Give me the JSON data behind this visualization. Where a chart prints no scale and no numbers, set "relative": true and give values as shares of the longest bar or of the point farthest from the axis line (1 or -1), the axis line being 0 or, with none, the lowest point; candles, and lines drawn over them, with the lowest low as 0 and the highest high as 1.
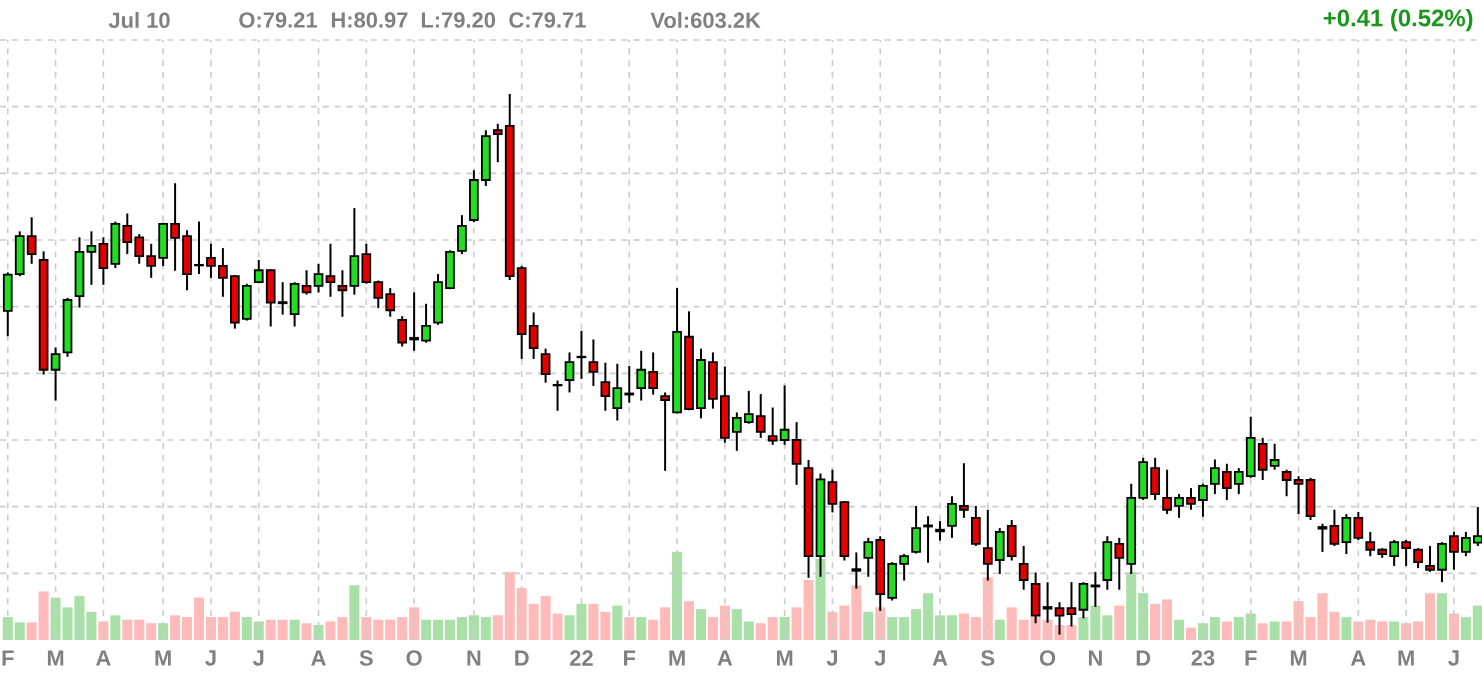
{
  "chart_data": [
    {
      "type": "candlestick",
      "annotations": [
        "Jul 10",
        "O:79.21",
        "H:80.97",
        "L:79.20",
        "C:79.71",
        "Vol:603.2K",
        "+0.41 (0.52%)"
      ],
      "relative": true,
      "grid": true,
      "categories": [
        "F",
        null,
        null,
        null,
        "M",
        null,
        null,
        null,
        "A",
        null,
        null,
        null,
        null,
        "M",
        null,
        null,
        null,
        "J",
        null,
        null,
        null,
        "J",
        null,
        null,
        null,
        null,
        "A",
        null,
        null,
        null,
        "S",
        null,
        null,
        null,
        "O",
        null,
        null,
        null,
        null,
        "N",
        null,
        null,
        null,
        "D",
        null,
        null,
        null,
        null,
        "22",
        null,
        null,
        null,
        "F",
        null,
        null,
        null,
        "M",
        null,
        null,
        null,
        "A",
        null,
        null,
        null,
        null,
        "M",
        null,
        null,
        null,
        "J",
        null,
        null,
        null,
        "J",
        null,
        null,
        null,
        null,
        "A",
        null,
        null,
        null,
        "S",
        null,
        null,
        null,
        null,
        "O",
        null,
        null,
        null,
        "N",
        null,
        null,
        null,
        "D",
        null,
        null,
        null,
        null,
        "23",
        null,
        null,
        null,
        "F",
        null,
        null,
        null,
        "M",
        null,
        null,
        null,
        null,
        "A",
        null,
        null,
        null,
        "M",
        null,
        null,
        null,
        "J",
        null,
        null
      ],
      "ohlc": [
        [
          0.599,
          0.67,
          0.552,
          0.666
        ],
        [
          0.667,
          0.746,
          0.663,
          0.737
        ],
        [
          0.737,
          0.772,
          0.686,
          0.704
        ],
        [
          0.693,
          0.709,
          0.481,
          0.49
        ],
        [
          0.49,
          0.531,
          0.433,
          0.519
        ],
        [
          0.522,
          0.623,
          0.514,
          0.619
        ],
        [
          0.626,
          0.735,
          0.605,
          0.708
        ],
        [
          0.708,
          0.746,
          0.647,
          0.719
        ],
        [
          0.723,
          0.735,
          0.647,
          0.678
        ],
        [
          0.686,
          0.764,
          0.678,
          0.76
        ],
        [
          0.756,
          0.779,
          0.704,
          0.726
        ],
        [
          0.735,
          0.741,
          0.686,
          0.7
        ],
        [
          0.7,
          0.723,
          0.66,
          0.682
        ],
        [
          0.697,
          0.762,
          0.682,
          0.76
        ],
        [
          0.76,
          0.835,
          0.673,
          0.734
        ],
        [
          0.737,
          0.748,
          0.637,
          0.667
        ],
        [
          0.684,
          0.764,
          0.667,
          0.683
        ],
        [
          0.697,
          0.723,
          0.66,
          0.682
        ],
        [
          0.682,
          0.715,
          0.625,
          0.66
        ],
        [
          0.663,
          0.665,
          0.566,
          0.577
        ],
        [
          0.584,
          0.649,
          0.581,
          0.645
        ],
        [
          0.652,
          0.693,
          0.65,
          0.674
        ],
        [
          0.674,
          0.676,
          0.57,
          0.614
        ],
        [
          0.615,
          0.652,
          0.592,
          0.613
        ],
        [
          0.593,
          0.652,
          0.57,
          0.649
        ],
        [
          0.645,
          0.674,
          0.629,
          0.633
        ],
        [
          0.645,
          0.686,
          0.633,
          0.667
        ],
        [
          0.663,
          0.723,
          0.625,
          0.652
        ],
        [
          0.645,
          0.674,
          0.588,
          0.637
        ],
        [
          0.645,
          0.789,
          0.629,
          0.7
        ],
        [
          0.704,
          0.723,
          0.649,
          0.652
        ],
        [
          0.652,
          0.655,
          0.604,
          0.623
        ],
        [
          0.63,
          0.641,
          0.588,
          0.6
        ],
        [
          0.582,
          0.589,
          0.533,
          0.54
        ],
        [
          0.549,
          0.633,
          0.525,
          0.546
        ],
        [
          0.544,
          0.612,
          0.54,
          0.571
        ],
        [
          0.577,
          0.667,
          0.573,
          0.652
        ],
        [
          0.641,
          0.711,
          0.639,
          0.708
        ],
        [
          0.71,
          0.776,
          0.704,
          0.756
        ],
        [
          0.767,
          0.859,
          0.763,
          0.841
        ],
        [
          0.841,
          0.933,
          0.83,
          0.922
        ],
        [
          0.933,
          0.945,
          0.874,
          0.926
        ],
        [
          0.941,
          1.0,
          0.656,
          0.663
        ],
        [
          0.678,
          0.682,
          0.51,
          0.556
        ],
        [
          0.571,
          0.596,
          0.51,
          0.53
        ],
        [
          0.519,
          0.529,
          0.466,
          0.482
        ],
        [
          0.462,
          0.47,
          0.414,
          0.461
        ],
        [
          0.471,
          0.522,
          0.448,
          0.504
        ],
        [
          0.513,
          0.562,
          0.473,
          0.514
        ],
        [
          0.504,
          0.546,
          0.46,
          0.486
        ],
        [
          0.467,
          0.503,
          0.414,
          0.441
        ],
        [
          0.419,
          0.501,
          0.396,
          0.456
        ],
        [
          0.446,
          0.497,
          0.429,
          0.444
        ],
        [
          0.456,
          0.525,
          0.433,
          0.49
        ],
        [
          0.486,
          0.522,
          0.444,
          0.456
        ],
        [
          0.441,
          0.448,
          0.303,
          0.434
        ],
        [
          0.411,
          0.641,
          0.409,
          0.56
        ],
        [
          0.551,
          0.598,
          0.415,
          0.417
        ],
        [
          0.419,
          0.529,
          0.4,
          0.508
        ],
        [
          0.504,
          0.522,
          0.418,
          0.436
        ],
        [
          0.441,
          0.496,
          0.355,
          0.364
        ],
        [
          0.375,
          0.411,
          0.34,
          0.401
        ],
        [
          0.393,
          0.451,
          0.39,
          0.408
        ],
        [
          0.404,
          0.445,
          0.364,
          0.375
        ],
        [
          0.367,
          0.42,
          0.351,
          0.359
        ],
        [
          0.36,
          0.461,
          0.351,
          0.379
        ],
        [
          0.36,
          0.393,
          0.277,
          0.316
        ],
        [
          0.308,
          0.323,
          0.105,
          0.145
        ],
        [
          0.145,
          0.298,
          0.107,
          0.287
        ],
        [
          0.282,
          0.305,
          0.226,
          0.242
        ],
        [
          0.245,
          0.247,
          0.137,
          0.145
        ],
        [
          0.121,
          0.152,
          0.085,
          0.118
        ],
        [
          0.142,
          0.179,
          0.107,
          0.171
        ],
        [
          0.175,
          0.182,
          0.044,
          0.075
        ],
        [
          0.068,
          0.134,
          0.063,
          0.131
        ],
        [
          0.131,
          0.149,
          0.1,
          0.145
        ],
        [
          0.153,
          0.238,
          0.15,
          0.197
        ],
        [
          0.2,
          0.219,
          0.133,
          0.202
        ],
        [
          0.191,
          0.21,
          0.174,
          0.194
        ],
        [
          0.201,
          0.256,
          0.179,
          0.242
        ],
        [
          0.238,
          0.317,
          0.216,
          0.231
        ],
        [
          0.216,
          0.238,
          0.164,
          0.168
        ],
        [
          0.16,
          0.231,
          0.1,
          0.131
        ],
        [
          0.138,
          0.197,
          0.112,
          0.19
        ],
        [
          0.201,
          0.212,
          0.137,
          0.145
        ],
        [
          0.131,
          0.164,
          0.083,
          0.101
        ],
        [
          0.094,
          0.115,
          0.021,
          0.035
        ],
        [
          0.051,
          0.097,
          0.022,
          0.048
        ],
        [
          0.049,
          0.06,
          0.0,
          0.035
        ],
        [
          0.049,
          0.097,
          0.015,
          0.038
        ],
        [
          0.046,
          0.097,
          0.03,
          0.094
        ],
        [
          0.089,
          0.116,
          0.051,
          0.091
        ],
        [
          0.101,
          0.182,
          0.083,
          0.171
        ],
        [
          0.168,
          0.179,
          0.083,
          0.142
        ],
        [
          0.131,
          0.279,
          0.112,
          0.253
        ],
        [
          0.253,
          0.327,
          0.249,
          0.319
        ],
        [
          0.308,
          0.327,
          0.249,
          0.26
        ],
        [
          0.253,
          0.305,
          0.223,
          0.231
        ],
        [
          0.238,
          0.26,
          0.216,
          0.253
        ],
        [
          0.253,
          0.271,
          0.231,
          0.242
        ],
        [
          0.249,
          0.279,
          0.218,
          0.275
        ],
        [
          0.279,
          0.324,
          0.26,
          0.308
        ],
        [
          0.301,
          0.316,
          0.249,
          0.271
        ],
        [
          0.279,
          0.308,
          0.26,
          0.301
        ],
        [
          0.293,
          0.403,
          0.29,
          0.364
        ],
        [
          0.353,
          0.364,
          0.286,
          0.305
        ],
        [
          0.312,
          0.353,
          0.305,
          0.323
        ],
        [
          0.301,
          0.305,
          0.256,
          0.286
        ],
        [
          0.286,
          0.293,
          0.223,
          0.279
        ],
        [
          0.286,
          0.29,
          0.212,
          0.219
        ],
        [
          0.199,
          0.205,
          0.153,
          0.196
        ],
        [
          0.201,
          0.231,
          0.164,
          0.168
        ],
        [
          0.171,
          0.223,
          0.149,
          0.216
        ],
        [
          0.216,
          0.227,
          0.175,
          0.179
        ],
        [
          0.171,
          0.19,
          0.145,
          0.157
        ],
        [
          0.157,
          0.16,
          0.142,
          0.149
        ],
        [
          0.145,
          0.175,
          0.127,
          0.171
        ],
        [
          0.171,
          0.175,
          0.127,
          0.16
        ],
        [
          0.157,
          0.16,
          0.123,
          0.134
        ],
        [
          0.127,
          0.164,
          0.116,
          0.12
        ],
        [
          0.12,
          0.171,
          0.097,
          0.168
        ],
        [
          0.182,
          0.19,
          0.12,
          0.153
        ],
        [
          0.153,
          0.19,
          0.145,
          0.179
        ],
        [
          0.17,
          0.236,
          0.164,
          0.182
        ]
      ],
      "colors": [
        "#22dd22",
        "#22dd22",
        "#e60000",
        "#e60000",
        "#22dd22",
        "#22dd22",
        "#22dd22",
        "#22dd22",
        "#e60000",
        "#22dd22",
        "#e60000",
        "#e60000",
        "#e60000",
        "#22dd22",
        "#e60000",
        "#e60000",
        "#e60000",
        "#e60000",
        "#e60000",
        "#e60000",
        "#22dd22",
        "#22dd22",
        "#e60000",
        "#e60000",
        "#22dd22",
        "#e60000",
        "#22dd22",
        "#e60000",
        "#e60000",
        "#22dd22",
        "#e60000",
        "#e60000",
        "#e60000",
        "#e60000",
        "#e60000",
        "#22dd22",
        "#22dd22",
        "#22dd22",
        "#22dd22",
        "#22dd22",
        "#22dd22",
        "#e60000",
        "#e60000",
        "#e60000",
        "#e60000",
        "#e60000",
        "#e60000",
        "#22dd22",
        "#22dd22",
        "#e60000",
        "#e60000",
        "#22dd22",
        "#e60000",
        "#22dd22",
        "#e60000",
        "#e60000",
        "#22dd22",
        "#e60000",
        "#22dd22",
        "#e60000",
        "#e60000",
        "#22dd22",
        "#22dd22",
        "#e60000",
        "#e60000",
        "#22dd22",
        "#e60000",
        "#e60000",
        "#22dd22",
        "#e60000",
        "#e60000",
        "#e60000",
        "#22dd22",
        "#e60000",
        "#22dd22",
        "#22dd22",
        "#22dd22",
        "#22dd22",
        "#22dd22",
        "#22dd22",
        "#e60000",
        "#e60000",
        "#e60000",
        "#22dd22",
        "#e60000",
        "#e60000",
        "#e60000",
        "#e60000",
        "#e60000",
        "#e60000",
        "#22dd22",
        "#22dd22",
        "#22dd22",
        "#e60000",
        "#22dd22",
        "#22dd22",
        "#e60000",
        "#e60000",
        "#22dd22",
        "#e60000",
        "#22dd22",
        "#22dd22",
        "#e60000",
        "#22dd22",
        "#22dd22",
        "#e60000",
        "#22dd22",
        "#e60000",
        "#e60000",
        "#e60000",
        "#e60000",
        "#e60000",
        "#22dd22",
        "#e60000",
        "#e60000",
        "#e60000",
        "#22dd22",
        "#e60000",
        "#e60000",
        "#e60000",
        "#22dd22",
        "#e60000",
        "#22dd22",
        "#22dd22"
      ]
    },
    {
      "type": "bar",
      "relative": true,
      "categories": [
        null,
        null,
        null,
        null,
        null,
        null,
        null,
        null,
        null,
        null,
        null,
        null,
        null,
        null,
        null,
        null,
        null,
        null,
        null,
        null,
        null,
        null,
        null,
        null,
        null,
        null,
        null,
        null,
        null,
        null,
        null,
        null,
        null,
        null,
        null,
        null,
        null,
        null,
        null,
        null,
        null,
        null,
        null,
        null,
        null,
        null,
        null,
        null,
        null,
        null,
        null,
        null,
        null,
        null,
        null,
        null,
        null,
        null,
        null,
        null,
        null,
        null,
        null,
        null,
        null,
        null,
        null,
        null,
        null,
        null,
        null,
        null,
        null,
        null,
        null,
        null,
        null,
        null,
        null,
        null,
        null,
        null,
        null,
        null,
        null,
        null,
        null,
        null,
        null,
        null,
        null,
        null,
        null,
        null,
        null,
        null,
        null,
        null,
        null,
        null,
        null,
        null,
        null,
        null,
        null,
        null,
        null,
        null,
        null,
        null,
        null,
        null,
        null,
        null,
        null,
        null,
        null,
        null,
        null,
        null,
        null,
        null,
        null,
        null
      ],
      "values": [
        0.26,
        0.2,
        0.2,
        0.55,
        0.48,
        0.37,
        0.5,
        0.32,
        0.21,
        0.28,
        0.23,
        0.23,
        0.19,
        0.19,
        0.28,
        0.26,
        0.48,
        0.26,
        0.26,
        0.32,
        0.26,
        0.21,
        0.23,
        0.23,
        0.23,
        0.19,
        0.17,
        0.21,
        0.26,
        0.62,
        0.26,
        0.23,
        0.23,
        0.26,
        0.37,
        0.23,
        0.23,
        0.23,
        0.26,
        0.28,
        0.26,
        0.28,
        0.77,
        0.59,
        0.41,
        0.5,
        0.3,
        0.28,
        0.41,
        0.41,
        0.32,
        0.39,
        0.26,
        0.26,
        0.23,
        0.37,
        1.0,
        0.44,
        0.35,
        0.26,
        0.39,
        0.35,
        0.21,
        0.19,
        0.26,
        0.26,
        0.37,
        0.68,
        0.92,
        0.32,
        0.39,
        0.62,
        0.32,
        0.37,
        0.26,
        0.26,
        0.35,
        0.53,
        0.28,
        0.28,
        0.3,
        0.26,
        0.71,
        0.23,
        0.37,
        0.23,
        0.26,
        0.23,
        0.17,
        0.17,
        0.26,
        0.39,
        0.28,
        0.39,
        0.77,
        0.53,
        0.41,
        0.46,
        0.23,
        0.14,
        0.19,
        0.26,
        0.21,
        0.26,
        0.3,
        0.19,
        0.21,
        0.21,
        0.44,
        0.26,
        0.53,
        0.32,
        0.26,
        0.21,
        0.23,
        0.21,
        0.21,
        0.19,
        0.21,
        0.53,
        0.53,
        0.3,
        0.26,
        0.39
      ],
      "colors": [
        "#a8e0a8",
        "#a8e0a8",
        "#ffbaba",
        "#ffbaba",
        "#a8e0a8",
        "#a8e0a8",
        "#a8e0a8",
        "#a8e0a8",
        "#ffbaba",
        "#a8e0a8",
        "#ffbaba",
        "#ffbaba",
        "#ffbaba",
        "#a8e0a8",
        "#ffbaba",
        "#ffbaba",
        "#ffbaba",
        "#ffbaba",
        "#ffbaba",
        "#ffbaba",
        "#a8e0a8",
        "#a8e0a8",
        "#ffbaba",
        "#ffbaba",
        "#a8e0a8",
        "#ffbaba",
        "#a8e0a8",
        "#ffbaba",
        "#ffbaba",
        "#a8e0a8",
        "#ffbaba",
        "#ffbaba",
        "#ffbaba",
        "#ffbaba",
        "#ffbaba",
        "#a8e0a8",
        "#a8e0a8",
        "#a8e0a8",
        "#a8e0a8",
        "#a8e0a8",
        "#a8e0a8",
        "#ffbaba",
        "#ffbaba",
        "#ffbaba",
        "#ffbaba",
        "#ffbaba",
        "#ffbaba",
        "#a8e0a8",
        "#a8e0a8",
        "#ffbaba",
        "#ffbaba",
        "#a8e0a8",
        "#ffbaba",
        "#a8e0a8",
        "#ffbaba",
        "#ffbaba",
        "#a8e0a8",
        "#ffbaba",
        "#a8e0a8",
        "#ffbaba",
        "#ffbaba",
        "#a8e0a8",
        "#a8e0a8",
        "#ffbaba",
        "#ffbaba",
        "#a8e0a8",
        "#ffbaba",
        "#ffbaba",
        "#a8e0a8",
        "#ffbaba",
        "#ffbaba",
        "#ffbaba",
        "#a8e0a8",
        "#ffbaba",
        "#a8e0a8",
        "#a8e0a8",
        "#a8e0a8",
        "#a8e0a8",
        "#a8e0a8",
        "#a8e0a8",
        "#ffbaba",
        "#ffbaba",
        "#ffbaba",
        "#a8e0a8",
        "#ffbaba",
        "#ffbaba",
        "#ffbaba",
        "#ffbaba",
        "#ffbaba",
        "#ffbaba",
        "#a8e0a8",
        "#a8e0a8",
        "#a8e0a8",
        "#ffbaba",
        "#a8e0a8",
        "#a8e0a8",
        "#ffbaba",
        "#ffbaba",
        "#a8e0a8",
        "#ffbaba",
        "#a8e0a8",
        "#a8e0a8",
        "#ffbaba",
        "#a8e0a8",
        "#a8e0a8",
        "#ffbaba",
        "#a8e0a8",
        "#ffbaba",
        "#ffbaba",
        "#ffbaba",
        "#ffbaba",
        "#ffbaba",
        "#a8e0a8",
        "#ffbaba",
        "#ffbaba",
        "#ffbaba",
        "#a8e0a8",
        "#ffbaba",
        "#ffbaba",
        "#ffbaba",
        "#a8e0a8",
        "#ffbaba",
        "#a8e0a8",
        "#a8e0a8"
      ]
    }
  ]
}
